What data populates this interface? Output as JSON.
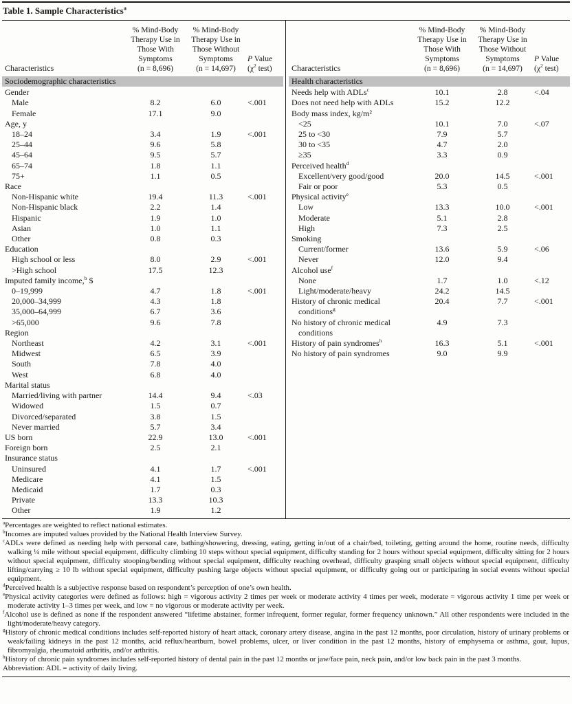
{
  "title": {
    "text": "Table 1. Sample Characteristics",
    "sup": "a"
  },
  "header": {
    "characteristics": "Characteristics",
    "with_symptoms": "% Mind-Body Therapy Use in Those With Symptoms",
    "with_n": "(n = 8,696)",
    "without_symptoms": "% Mind-Body Therapy Use in Those Without Symptoms",
    "without_n": "(n = 14,697)",
    "p_italic": "P",
    "p_rest": " Value",
    "chi_pre": "(χ",
    "chi_sup": "2",
    "chi_post": " test)"
  },
  "left_rows": [
    {
      "t": "section",
      "label": "Sociodemographic characteristics"
    },
    {
      "t": "group",
      "label": "Gender"
    },
    {
      "t": "d",
      "ind": 1,
      "label": "Male",
      "v1": "8.2",
      "v2": "6.0",
      "p": "<.001"
    },
    {
      "t": "d",
      "ind": 1,
      "label": "Female",
      "v1": "17.1",
      "v2": "9.0",
      "p": ""
    },
    {
      "t": "group",
      "label": "Age, y"
    },
    {
      "t": "d",
      "ind": 1,
      "label": "18–24",
      "v1": "3.4",
      "v2": "1.9",
      "p": "<.001"
    },
    {
      "t": "d",
      "ind": 1,
      "label": "25–44",
      "v1": "9.6",
      "v2": "5.8",
      "p": ""
    },
    {
      "t": "d",
      "ind": 1,
      "label": "45–64",
      "v1": "9.5",
      "v2": "5.7",
      "p": ""
    },
    {
      "t": "d",
      "ind": 1,
      "label": "65–74",
      "v1": "1.8",
      "v2": "1.1",
      "p": ""
    },
    {
      "t": "d",
      "ind": 1,
      "label": "75+",
      "v1": "1.1",
      "v2": "0.5",
      "p": ""
    },
    {
      "t": "group",
      "label": "Race"
    },
    {
      "t": "d",
      "ind": 1,
      "label": "Non-Hispanic white",
      "v1": "19.4",
      "v2": "11.3",
      "p": "<.001"
    },
    {
      "t": "d",
      "ind": 1,
      "label": "Non-Hispanic black",
      "v1": "2.2",
      "v2": "1.4",
      "p": ""
    },
    {
      "t": "d",
      "ind": 1,
      "label": "Hispanic",
      "v1": "1.9",
      "v2": "1.0",
      "p": ""
    },
    {
      "t": "d",
      "ind": 1,
      "label": "Asian",
      "v1": "1.0",
      "v2": "1.1",
      "p": ""
    },
    {
      "t": "d",
      "ind": 1,
      "label": "Other",
      "v1": "0.8",
      "v2": "0.3",
      "p": ""
    },
    {
      "t": "group",
      "label": "Education"
    },
    {
      "t": "d",
      "ind": 1,
      "label": "High school or less",
      "v1": "8.0",
      "v2": "2.9",
      "p": "<.001"
    },
    {
      "t": "d",
      "ind": 1,
      "label": ">High school",
      "v1": "17.5",
      "v2": "12.3",
      "p": ""
    },
    {
      "t": "group",
      "label": "Imputed family income,",
      "sup": "b",
      "post": " $"
    },
    {
      "t": "d",
      "ind": 1,
      "label": "0–19,999",
      "v1": "4.7",
      "v2": "1.8",
      "p": "<.001"
    },
    {
      "t": "d",
      "ind": 1,
      "label": "20,000–34,999",
      "v1": "4.3",
      "v2": "1.8",
      "p": ""
    },
    {
      "t": "d",
      "ind": 1,
      "label": "35,000–64,999",
      "v1": "6.7",
      "v2": "3.6",
      "p": ""
    },
    {
      "t": "d",
      "ind": 1,
      "label": ">65,000",
      "v1": "9.6",
      "v2": "7.8",
      "p": ""
    },
    {
      "t": "group",
      "label": "Region"
    },
    {
      "t": "d",
      "ind": 1,
      "label": "Northeast",
      "v1": "4.2",
      "v2": "3.1",
      "p": "<.001"
    },
    {
      "t": "d",
      "ind": 1,
      "label": "Midwest",
      "v1": "6.5",
      "v2": "3.9",
      "p": ""
    },
    {
      "t": "d",
      "ind": 1,
      "label": "South",
      "v1": "7.8",
      "v2": "4.0",
      "p": ""
    },
    {
      "t": "d",
      "ind": 1,
      "label": "West",
      "v1": "6.8",
      "v2": "4.0",
      "p": ""
    },
    {
      "t": "group",
      "label": "Marital status"
    },
    {
      "t": "d",
      "ind": 1,
      "label": "Married/living with partner",
      "v1": "14.4",
      "v2": "9.4",
      "p": "<.03"
    },
    {
      "t": "d",
      "ind": 1,
      "label": "Widowed",
      "v1": "1.5",
      "v2": "0.7",
      "p": ""
    },
    {
      "t": "d",
      "ind": 1,
      "label": "Divorced/separated",
      "v1": "3.8",
      "v2": "1.5",
      "p": ""
    },
    {
      "t": "d",
      "ind": 1,
      "label": "Never married",
      "v1": "5.7",
      "v2": "3.4",
      "p": ""
    },
    {
      "t": "d",
      "ind": 0,
      "label": "US born",
      "v1": "22.9",
      "v2": "13.0",
      "p": "<.001"
    },
    {
      "t": "d",
      "ind": 0,
      "label": "Foreign born",
      "v1": "2.5",
      "v2": "2.1",
      "p": ""
    },
    {
      "t": "group",
      "label": "Insurance status"
    },
    {
      "t": "d",
      "ind": 1,
      "label": "Uninsured",
      "v1": "4.1",
      "v2": "1.7",
      "p": "<.001"
    },
    {
      "t": "d",
      "ind": 1,
      "label": "Medicare",
      "v1": "4.1",
      "v2": "1.5",
      "p": ""
    },
    {
      "t": "d",
      "ind": 1,
      "label": "Medicaid",
      "v1": "1.7",
      "v2": "0.3",
      "p": ""
    },
    {
      "t": "d",
      "ind": 1,
      "label": "Private",
      "v1": "13.3",
      "v2": "10.3",
      "p": ""
    },
    {
      "t": "d",
      "ind": 1,
      "label": "Other",
      "v1": "1.9",
      "v2": "1.2",
      "p": ""
    }
  ],
  "right_rows": [
    {
      "t": "section",
      "label": "Health characteristics"
    },
    {
      "t": "d",
      "ind": 0,
      "label": "Needs help with ADLs",
      "sup": "c",
      "v1": "10.1",
      "v2": "2.8",
      "p": "<.04"
    },
    {
      "t": "d",
      "ind": 0,
      "label": "Does not need help with ADLs",
      "v1": "15.2",
      "v2": "12.2",
      "p": ""
    },
    {
      "t": "group",
      "label": "Body mass index, kg/m²"
    },
    {
      "t": "d",
      "ind": 1,
      "label": "<25",
      "v1": "10.1",
      "v2": "7.0",
      "p": "<.07"
    },
    {
      "t": "d",
      "ind": 1,
      "label": "25 to <30",
      "v1": "7.9",
      "v2": "5.7",
      "p": ""
    },
    {
      "t": "d",
      "ind": 1,
      "label": "30 to <35",
      "v1": "4.7",
      "v2": "2.0",
      "p": ""
    },
    {
      "t": "d",
      "ind": 1,
      "label": "≥35",
      "v1": "3.3",
      "v2": "0.9",
      "p": ""
    },
    {
      "t": "group",
      "label": "Perceived health",
      "sup": "d"
    },
    {
      "t": "d",
      "ind": 1,
      "label": "Excellent/very good/good",
      "v1": "20.0",
      "v2": "14.5",
      "p": "<.001"
    },
    {
      "t": "d",
      "ind": 1,
      "label": "Fair or poor",
      "v1": "5.3",
      "v2": "0.5",
      "p": ""
    },
    {
      "t": "group",
      "label": "Physical activity",
      "sup": "e"
    },
    {
      "t": "d",
      "ind": 1,
      "label": "Low",
      "v1": "13.3",
      "v2": "10.0",
      "p": "<.001"
    },
    {
      "t": "d",
      "ind": 1,
      "label": "Moderate",
      "v1": "5.1",
      "v2": "2.8",
      "p": ""
    },
    {
      "t": "d",
      "ind": 1,
      "label": "High",
      "v1": "7.3",
      "v2": "2.5",
      "p": ""
    },
    {
      "t": "group",
      "label": "Smoking"
    },
    {
      "t": "d",
      "ind": 1,
      "label": "Current/former",
      "v1": "13.6",
      "v2": "5.9",
      "p": "<.06"
    },
    {
      "t": "d",
      "ind": 1,
      "label": "Never",
      "v1": "12.0",
      "v2": "9.4",
      "p": ""
    },
    {
      "t": "group",
      "label": "Alcohol use",
      "sup": "f"
    },
    {
      "t": "d",
      "ind": 1,
      "label": "None",
      "v1": "1.7",
      "v2": "1.0",
      "p": "<.12"
    },
    {
      "t": "d",
      "ind": 1,
      "label": "Light/moderate/heavy",
      "v1": "24.2",
      "v2": "14.5",
      "p": ""
    },
    {
      "t": "d",
      "ind": 0,
      "label": "History of chronic medical conditions",
      "sup": "g",
      "v1": "20.4",
      "v2": "7.7",
      "p": "<.001"
    },
    {
      "t": "d",
      "ind": 0,
      "label": "No history of chronic medical conditions",
      "v1": "4.9",
      "v2": "7.3",
      "p": ""
    },
    {
      "t": "d",
      "ind": 0,
      "label": "History of pain syndromes",
      "sup": "h",
      "v1": "16.3",
      "v2": "5.1",
      "p": "<.001"
    },
    {
      "t": "d",
      "ind": 0,
      "label": "No history of pain syndromes",
      "v1": "9.0",
      "v2": "9.9",
      "p": ""
    }
  ],
  "footnotes": [
    {
      "sup": "a",
      "text": "Percentages are weighted to reflect national estimates."
    },
    {
      "sup": "b",
      "text": "Incomes are imputed values provided by the National Health Interview Survey."
    },
    {
      "sup": "c",
      "text": "ADLs were defined as needing help with personal care, bathing/showering, dressing, eating, getting in/out of a chair/bed, toileting, getting around the home, routine needs, difficulty walking ¼ mile without special equipment, difficulty climbing 10 steps without special equipment, difficulty standing for 2 hours without special equipment, difficulty sitting for 2 hours without special equipment, difficulty stooping/bending without special equipment, difficulty reaching overhead, difficulty grasping small objects without special equipment, difficulty lifting/carrying ≥ 10 lb without special equipment, difficulty pushing large objects without special equipment, or difficulty going out or participating in social events without special equipment."
    },
    {
      "sup": "d",
      "text": "Perceived health is a subjective response based on respondent’s perception of one’s own health."
    },
    {
      "sup": "e",
      "text": "Physical activity categories were defined as follows: high = vigorous activity 2 times per week or moderate activity 4 times per week, moderate = vigorous activity 1 time per week or moderate activity 1–3 times per week, and low = no vigorous or moderate activity per week."
    },
    {
      "sup": "f",
      "text": "Alcohol use is defined as none if the respondent answered “lifetime abstainer, former infrequent, former regular, former frequency unknown.” All other respondents were included in the light/moderate/heavy category."
    },
    {
      "sup": "g",
      "text": "History of chronic medical conditions includes self-reported history of heart attack, coronary artery disease, angina in the past 12 months, poor circulation, history of urinary problems or weak/failing kidneys in the past 12 months, acid reflux/heartburn, bowel problems, ulcer, or liver condition in the past 12 months, history of emphysema or asthma, gout, lupus, fibromyalgia, rheumatoid arthritis, and/or arthritis."
    },
    {
      "sup": "h",
      "text": "History of chronic pain syndromes includes self-reported history of dental pain in the past 12 months or jaw/face pain, neck pain, and/or low back pain in the past 3 months."
    },
    {
      "sup": "",
      "text": "Abbreviation: ADL = activity of daily living."
    }
  ]
}
